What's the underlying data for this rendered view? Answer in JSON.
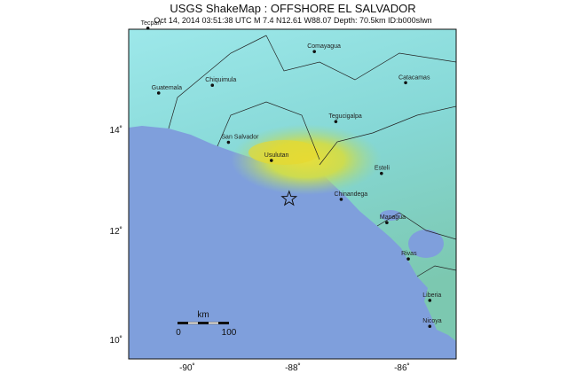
{
  "header": {
    "title": "USGS ShakeMap : OFFSHORE EL SALVADOR",
    "subtitle": "Oct 14, 2014 03:51:38 UTC   M 7.4   N12.61 W88.07   Depth: 70.5km   ID:b000slwn"
  },
  "map": {
    "epicenter": {
      "lon": -88.07,
      "lat": 12.61
    },
    "x_ticks": [
      "-90˚",
      "-88˚",
      "-86˚"
    ],
    "y_ticks": [
      "14˚",
      "12˚",
      "10˚"
    ],
    "scale_bar": {
      "unit": "km",
      "start": "0",
      "end": "100"
    },
    "colors": {
      "ocean": "#7f9fdc",
      "land_low": "#8fe0e0",
      "land_mid": "#7fd0a0",
      "land_high": "#e6e050",
      "border": "#111111"
    },
    "cities": [
      {
        "name": "Tecpan",
        "lon": -90.7,
        "lat": 15.9
      },
      {
        "name": "Guatemala",
        "lon": -90.5,
        "lat": 14.65
      },
      {
        "name": "Chiquimula",
        "lon": -89.5,
        "lat": 14.8
      },
      {
        "name": "Comayagua",
        "lon": -87.6,
        "lat": 15.45
      },
      {
        "name": "Catacamas",
        "lon": -85.9,
        "lat": 14.85
      },
      {
        "name": "Tegucigalpa",
        "lon": -87.2,
        "lat": 14.1
      },
      {
        "name": "San Salvador",
        "lon": -89.2,
        "lat": 13.7
      },
      {
        "name": "Usulutan",
        "lon": -88.4,
        "lat": 13.35
      },
      {
        "name": "Chinandega",
        "lon": -87.1,
        "lat": 12.6
      },
      {
        "name": "Esteli",
        "lon": -86.35,
        "lat": 13.1
      },
      {
        "name": "Managua",
        "lon": -86.25,
        "lat": 12.15
      },
      {
        "name": "Rivas",
        "lon": -85.85,
        "lat": 11.45
      },
      {
        "name": "Liberia",
        "lon": -85.45,
        "lat": 10.65
      },
      {
        "name": "Nicoya",
        "lon": -85.45,
        "lat": 10.15
      }
    ]
  }
}
